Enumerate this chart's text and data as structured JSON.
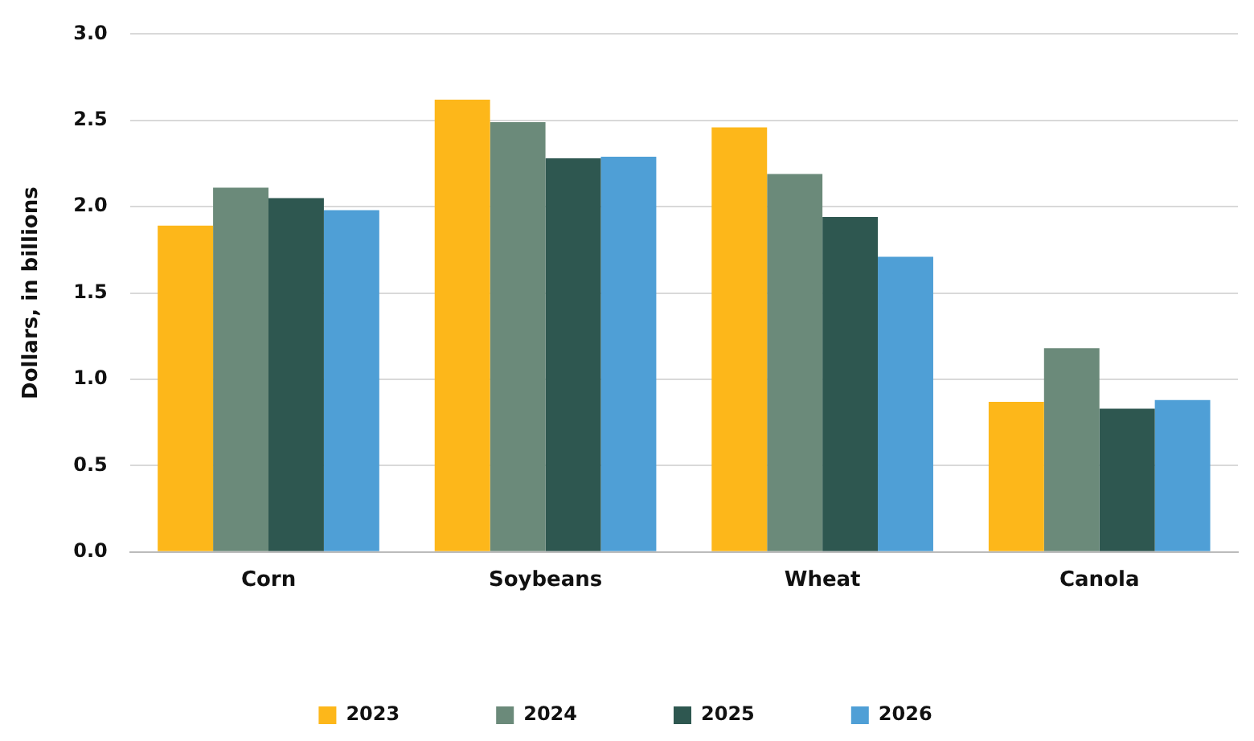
{
  "chart_data": {
    "type": "bar",
    "ylabel": "Dollars, in billions",
    "categories": [
      "Corn",
      "Soybeans",
      "Wheat",
      "Canola"
    ],
    "series": [
      {
        "name": "2023",
        "color": "#fdb71a",
        "values": [
          1.89,
          2.62,
          2.46,
          0.87
        ]
      },
      {
        "name": "2024",
        "color": "#6b8a7a",
        "values": [
          2.11,
          2.49,
          2.19,
          1.18
        ]
      },
      {
        "name": "2025",
        "color": "#2e5750",
        "values": [
          2.05,
          2.28,
          1.94,
          0.83
        ]
      },
      {
        "name": "2026",
        "color": "#4f9fd6",
        "values": [
          1.98,
          2.29,
          1.71,
          0.88
        ]
      }
    ],
    "ylim": [
      0,
      3
    ],
    "yticks": [
      {
        "value": 0,
        "label": "0.0"
      },
      {
        "value": 0.5,
        "label": "0.5"
      },
      {
        "value": 1,
        "label": "1.0"
      },
      {
        "value": 1.5,
        "label": "1.5"
      },
      {
        "value": 2,
        "label": "2.0"
      },
      {
        "value": 2.5,
        "label": "2.5"
      },
      {
        "value": 3,
        "label": "3.0"
      }
    ],
    "grid": "y",
    "legend": "bottom"
  }
}
